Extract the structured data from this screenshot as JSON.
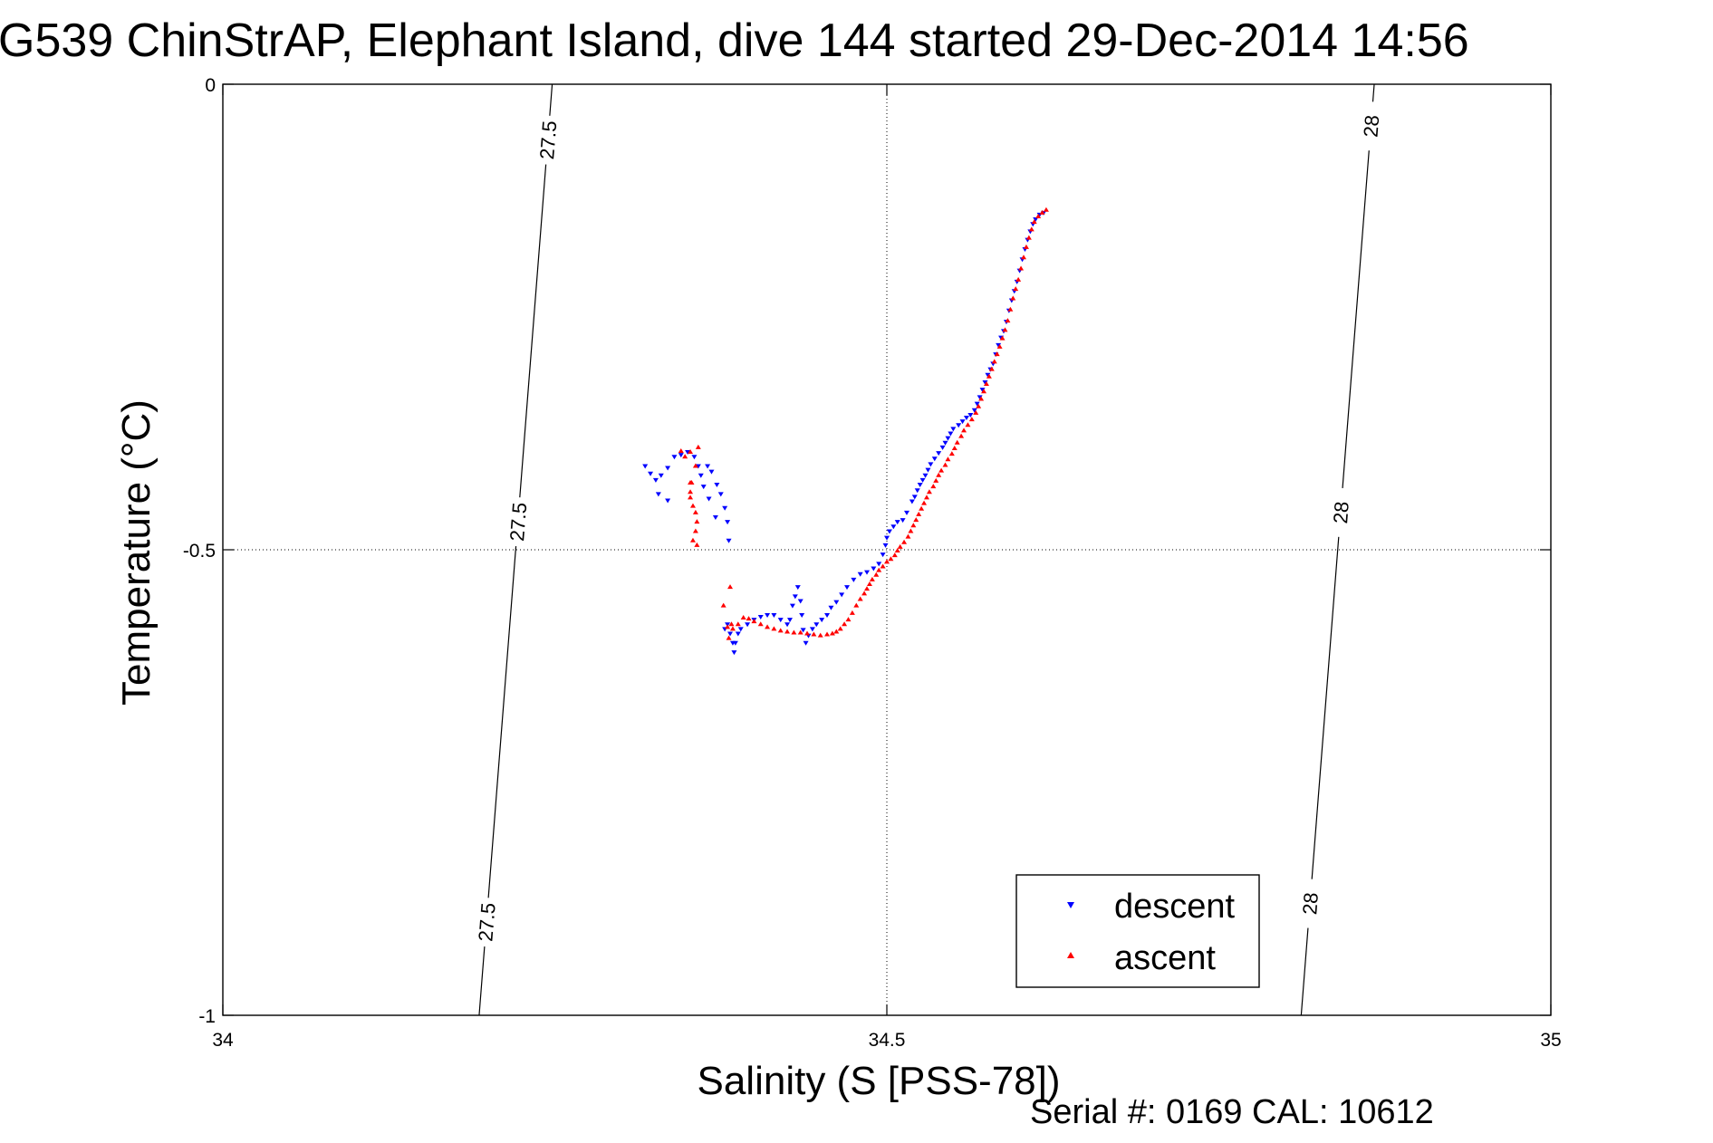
{
  "chart_data": {
    "type": "scatter",
    "title": "G539 ChinStrAP, Elephant Island, dive 144 started 29-Dec-2014 14:56",
    "xlabel": "Salinity (S [PSS-78])",
    "ylabel": "Temperature (°C)",
    "xlim": [
      34,
      35
    ],
    "ylim": [
      -1,
      0
    ],
    "xticks": [
      34,
      34.5,
      35
    ],
    "xtick_labels": [
      "34",
      "34.5",
      "35"
    ],
    "yticks": [
      -1,
      -0.5,
      0
    ],
    "ytick_labels": [
      "-1",
      "-0.5",
      "0"
    ],
    "grid": true,
    "legend_position": "bottom-right",
    "footer": "Serial #: 0169 CAL: 10612",
    "density_contours": [
      {
        "label": "27.5",
        "points": [
          [
            34.248,
            0
          ],
          [
            34.193,
            -1
          ]
        ],
        "label_y": [
          -0.06,
          -0.47,
          -0.9
        ]
      },
      {
        "label": "28",
        "points": [
          [
            34.867,
            0
          ],
          [
            34.812,
            -1
          ]
        ],
        "label_y": [
          -0.045,
          -0.46,
          -0.88
        ]
      }
    ],
    "series": [
      {
        "name": "descent",
        "color": "#0000ff",
        "marker": "triangle-down",
        "points": [
          [
            34.618,
            -0.138
          ],
          [
            34.615,
            -0.14
          ],
          [
            34.612,
            -0.145
          ],
          [
            34.61,
            -0.15
          ],
          [
            34.608,
            -0.158
          ],
          [
            34.606,
            -0.167
          ],
          [
            34.604,
            -0.177
          ],
          [
            34.602,
            -0.188
          ],
          [
            34.6,
            -0.2
          ],
          [
            34.598,
            -0.212
          ],
          [
            34.596,
            -0.222
          ],
          [
            34.594,
            -0.232
          ],
          [
            34.592,
            -0.243
          ],
          [
            34.59,
            -0.255
          ],
          [
            34.588,
            -0.265
          ],
          [
            34.586,
            -0.272
          ],
          [
            34.584,
            -0.28
          ],
          [
            34.582,
            -0.29
          ],
          [
            34.58,
            -0.3
          ],
          [
            34.578,
            -0.306
          ],
          [
            34.576,
            -0.312
          ],
          [
            34.574,
            -0.32
          ],
          [
            34.572,
            -0.328
          ],
          [
            34.57,
            -0.336
          ],
          [
            34.568,
            -0.343
          ],
          [
            34.566,
            -0.35
          ],
          [
            34.563,
            -0.355
          ],
          [
            34.56,
            -0.358
          ],
          [
            34.557,
            -0.362
          ],
          [
            34.554,
            -0.366
          ],
          [
            34.55,
            -0.37
          ],
          [
            34.548,
            -0.375
          ],
          [
            34.546,
            -0.38
          ],
          [
            34.544,
            -0.385
          ],
          [
            34.542,
            -0.39
          ],
          [
            34.539,
            -0.396
          ],
          [
            34.536,
            -0.402
          ],
          [
            34.533,
            -0.408
          ],
          [
            34.531,
            -0.414
          ],
          [
            34.529,
            -0.42
          ],
          [
            34.527,
            -0.425
          ],
          [
            34.525,
            -0.43
          ],
          [
            34.523,
            -0.436
          ],
          [
            34.521,
            -0.443
          ],
          [
            34.519,
            -0.448
          ],
          [
            34.515,
            -0.46
          ],
          [
            34.512,
            -0.468
          ],
          [
            34.508,
            -0.47
          ],
          [
            34.505,
            -0.475
          ],
          [
            34.502,
            -0.48
          ],
          [
            34.5,
            -0.487
          ],
          [
            34.499,
            -0.495
          ],
          [
            34.497,
            -0.505
          ],
          [
            34.494,
            -0.515
          ],
          [
            34.49,
            -0.52
          ],
          [
            34.485,
            -0.524
          ],
          [
            34.48,
            -0.526
          ],
          [
            34.475,
            -0.532
          ],
          [
            34.47,
            -0.54
          ],
          [
            34.466,
            -0.548
          ],
          [
            34.462,
            -0.556
          ],
          [
            34.458,
            -0.562
          ],
          [
            34.455,
            -0.57
          ],
          [
            34.451,
            -0.575
          ],
          [
            34.447,
            -0.58
          ],
          [
            34.444,
            -0.585
          ],
          [
            34.441,
            -0.592
          ],
          [
            34.439,
            -0.6
          ],
          [
            34.437,
            -0.586
          ],
          [
            34.436,
            -0.57
          ],
          [
            34.435,
            -0.555
          ],
          [
            34.433,
            -0.54
          ],
          [
            34.431,
            -0.55
          ],
          [
            34.429,
            -0.56
          ],
          [
            34.427,
            -0.575
          ],
          [
            34.425,
            -0.58
          ],
          [
            34.42,
            -0.575
          ],
          [
            34.415,
            -0.57
          ],
          [
            34.41,
            -0.57
          ],
          [
            34.405,
            -0.572
          ],
          [
            34.4,
            -0.575
          ],
          [
            34.395,
            -0.58
          ],
          [
            34.39,
            -0.585
          ],
          [
            34.388,
            -0.59
          ],
          [
            34.386,
            -0.6
          ],
          [
            34.385,
            -0.61
          ],
          [
            34.384,
            -0.6
          ],
          [
            34.382,
            -0.59
          ],
          [
            34.38,
            -0.58
          ],
          [
            34.378,
            -0.585
          ],
          [
            34.318,
            -0.41
          ],
          [
            34.322,
            -0.418
          ],
          [
            34.326,
            -0.425
          ],
          [
            34.33,
            -0.42
          ],
          [
            34.335,
            -0.412
          ],
          [
            34.34,
            -0.4
          ],
          [
            34.345,
            -0.398
          ],
          [
            34.35,
            -0.395
          ],
          [
            34.355,
            -0.4
          ],
          [
            34.358,
            -0.41
          ],
          [
            34.36,
            -0.42
          ],
          [
            34.362,
            -0.432
          ],
          [
            34.365,
            -0.41
          ],
          [
            34.368,
            -0.416
          ],
          [
            34.372,
            -0.43
          ],
          [
            34.375,
            -0.44
          ],
          [
            34.378,
            -0.455
          ],
          [
            34.38,
            -0.47
          ],
          [
            34.381,
            -0.49
          ],
          [
            34.371,
            -0.465
          ],
          [
            34.366,
            -0.445
          ],
          [
            34.328,
            -0.44
          ],
          [
            34.335,
            -0.447
          ]
        ]
      },
      {
        "name": "ascent",
        "color": "#ff0000",
        "marker": "triangle-up",
        "points": [
          [
            34.62,
            -0.135
          ],
          [
            34.617,
            -0.138
          ],
          [
            34.614,
            -0.142
          ],
          [
            34.611,
            -0.148
          ],
          [
            34.609,
            -0.156
          ],
          [
            34.607,
            -0.165
          ],
          [
            34.605,
            -0.175
          ],
          [
            34.603,
            -0.186
          ],
          [
            34.601,
            -0.198
          ],
          [
            34.599,
            -0.21
          ],
          [
            34.597,
            -0.22
          ],
          [
            34.595,
            -0.23
          ],
          [
            34.593,
            -0.242
          ],
          [
            34.591,
            -0.254
          ],
          [
            34.589,
            -0.264
          ],
          [
            34.587,
            -0.273
          ],
          [
            34.585,
            -0.282
          ],
          [
            34.583,
            -0.29
          ],
          [
            34.581,
            -0.298
          ],
          [
            34.579,
            -0.306
          ],
          [
            34.577,
            -0.314
          ],
          [
            34.575,
            -0.322
          ],
          [
            34.573,
            -0.33
          ],
          [
            34.571,
            -0.338
          ],
          [
            34.569,
            -0.346
          ],
          [
            34.567,
            -0.353
          ],
          [
            34.564,
            -0.36
          ],
          [
            34.561,
            -0.366
          ],
          [
            34.558,
            -0.372
          ],
          [
            34.556,
            -0.378
          ],
          [
            34.553,
            -0.385
          ],
          [
            34.551,
            -0.391
          ],
          [
            34.549,
            -0.397
          ],
          [
            34.546,
            -0.403
          ],
          [
            34.544,
            -0.409
          ],
          [
            34.541,
            -0.415
          ],
          [
            34.539,
            -0.42
          ],
          [
            34.537,
            -0.426
          ],
          [
            34.535,
            -0.432
          ],
          [
            34.532,
            -0.438
          ],
          [
            34.53,
            -0.444
          ],
          [
            34.528,
            -0.45
          ],
          [
            34.526,
            -0.456
          ],
          [
            34.524,
            -0.462
          ],
          [
            34.522,
            -0.468
          ],
          [
            34.52,
            -0.474
          ],
          [
            34.518,
            -0.48
          ],
          [
            34.516,
            -0.486
          ],
          [
            34.513,
            -0.492
          ],
          [
            34.51,
            -0.497
          ],
          [
            34.508,
            -0.501
          ],
          [
            34.506,
            -0.506
          ],
          [
            34.503,
            -0.51
          ],
          [
            34.5,
            -0.513
          ],
          [
            34.497,
            -0.518
          ],
          [
            34.494,
            -0.522
          ],
          [
            34.492,
            -0.527
          ],
          [
            34.489,
            -0.532
          ],
          [
            34.487,
            -0.537
          ],
          [
            34.485,
            -0.542
          ],
          [
            34.483,
            -0.547
          ],
          [
            34.48,
            -0.553
          ],
          [
            34.477,
            -0.56
          ],
          [
            34.474,
            -0.568
          ],
          [
            34.471,
            -0.575
          ],
          [
            34.468,
            -0.58
          ],
          [
            34.465,
            -0.585
          ],
          [
            34.462,
            -0.588
          ],
          [
            34.459,
            -0.59
          ],
          [
            34.455,
            -0.591
          ],
          [
            34.45,
            -0.592
          ],
          [
            34.445,
            -0.591
          ],
          [
            34.44,
            -0.59
          ],
          [
            34.435,
            -0.589
          ],
          [
            34.43,
            -0.589
          ],
          [
            34.425,
            -0.588
          ],
          [
            34.42,
            -0.587
          ],
          [
            34.415,
            -0.585
          ],
          [
            34.41,
            -0.583
          ],
          [
            34.405,
            -0.58
          ],
          [
            34.4,
            -0.577
          ],
          [
            34.396,
            -0.574
          ],
          [
            34.392,
            -0.573
          ],
          [
            34.388,
            -0.58
          ],
          [
            34.384,
            -0.585
          ],
          [
            34.38,
            -0.583
          ],
          [
            34.377,
            -0.56
          ],
          [
            34.382,
            -0.54
          ],
          [
            34.383,
            -0.58
          ],
          [
            34.381,
            -0.595
          ],
          [
            34.352,
            -0.428
          ],
          [
            34.352,
            -0.444
          ],
          [
            34.354,
            -0.453
          ],
          [
            34.356,
            -0.46
          ],
          [
            34.357,
            -0.47
          ],
          [
            34.356,
            -0.48
          ],
          [
            34.354,
            -0.49
          ],
          [
            34.357,
            -0.495
          ],
          [
            34.353,
            -0.428
          ],
          [
            34.352,
            -0.438
          ],
          [
            34.348,
            -0.4
          ],
          [
            34.345,
            -0.394
          ],
          [
            34.352,
            -0.395
          ],
          [
            34.356,
            -0.41
          ],
          [
            34.358,
            -0.39
          ]
        ]
      }
    ]
  }
}
